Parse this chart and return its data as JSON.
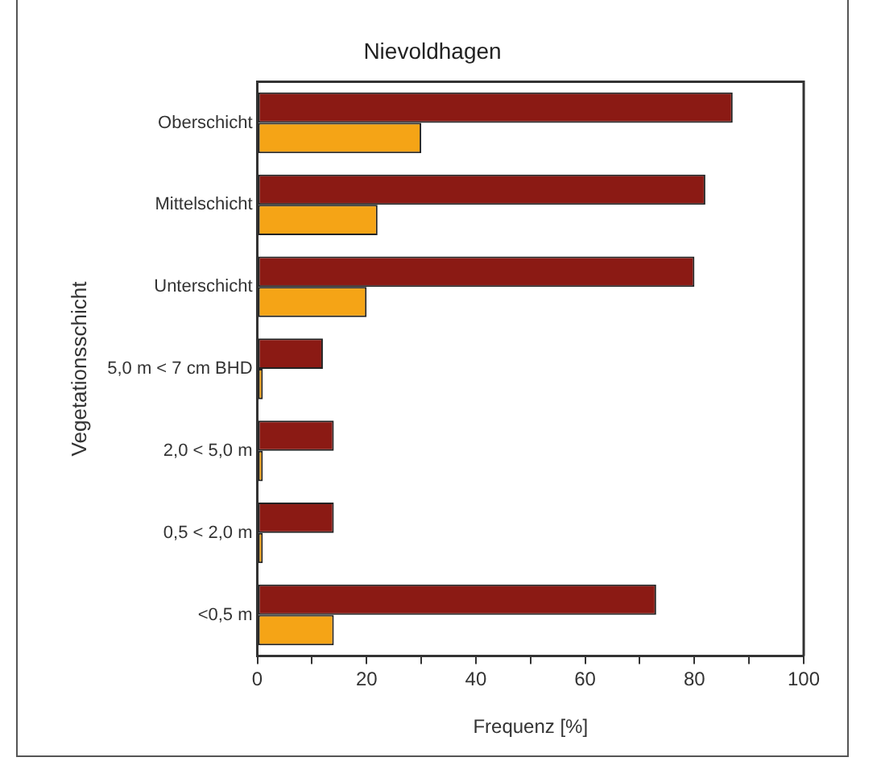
{
  "chart_data": {
    "type": "bar",
    "orientation": "horizontal",
    "title": "Nievoldhagen",
    "xlabel": "Frequenz [%]",
    "ylabel": "Vegetationsschicht",
    "categories": [
      "Oberschicht",
      "Mittelschicht",
      "Unterschicht",
      "5,0 m < 7 cm BHD",
      "2,0 < 5,0 m",
      "0,5 < 2,0 m",
      "<0,5 m"
    ],
    "series": [
      {
        "color": "#8b1a14",
        "values": [
          87,
          82,
          80,
          12,
          14,
          14,
          73
        ]
      },
      {
        "color": "#f5a416",
        "values": [
          30,
          22,
          20,
          1,
          1,
          1,
          14
        ]
      }
    ],
    "xlim": [
      0,
      100
    ],
    "xticks": [
      0,
      {
        "value": 10,
        "label": null
      },
      20,
      {
        "value": 30,
        "label": null
      },
      40,
      {
        "value": 50,
        "label": null
      },
      60,
      {
        "value": 70,
        "label": null
      },
      80,
      {
        "value": 90,
        "label": null
      },
      100
    ],
    "grid": false,
    "legend": false
  }
}
